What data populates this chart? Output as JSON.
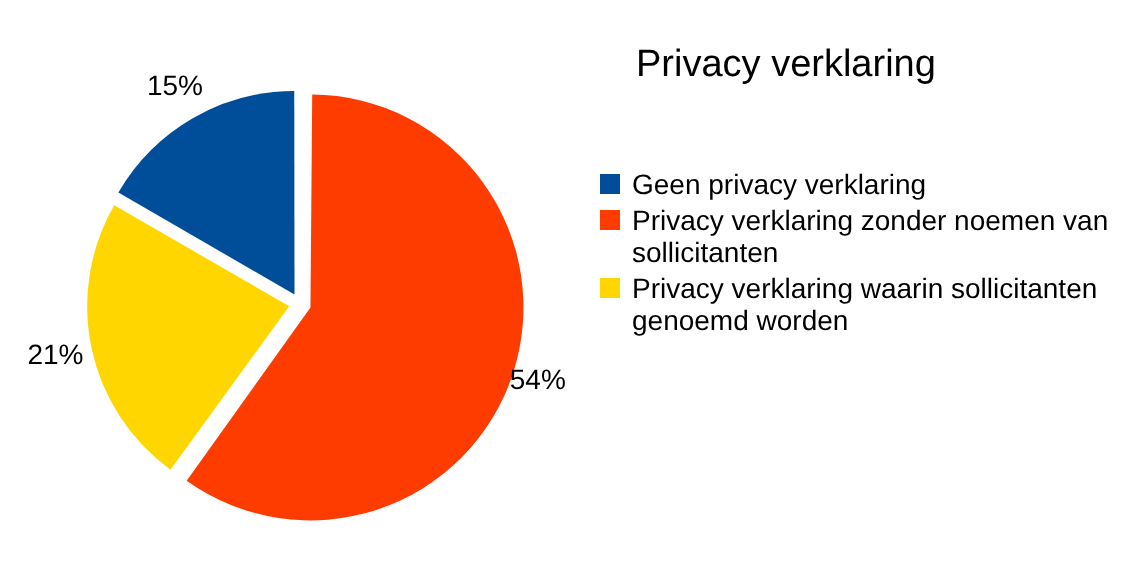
{
  "chart_data": {
    "type": "pie",
    "title": "Privacy verklaring",
    "categories": [
      "Geen privacy verklaring",
      "Privacy verklaring zonder noemen van sollicitanten",
      "Privacy verklaring waarin sollicitanten genoemd worden"
    ],
    "values": [
      15,
      54,
      21
    ],
    "colors": [
      "#004e9a",
      "#ff3c00",
      "#ffd600"
    ],
    "value_labels": [
      "15%",
      "54%",
      "21%"
    ],
    "legend": "right"
  }
}
